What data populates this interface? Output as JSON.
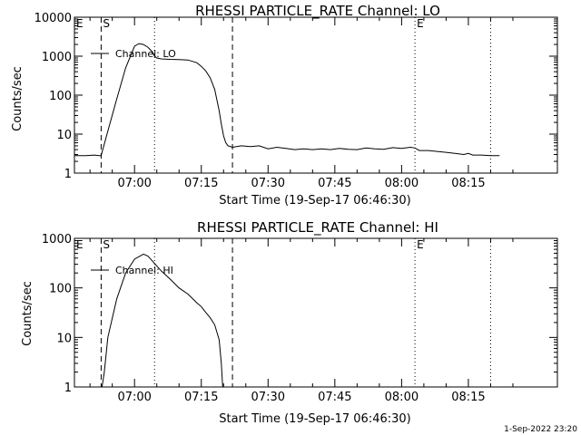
{
  "footer": {
    "timestamp": "1-Sep-2022 23:20"
  },
  "chart_data": [
    {
      "type": "line",
      "title": "RHESSI PARTICLE_RATE Channel: LO",
      "xlabel": "Start Time (19-Sep-17 06:46:30)",
      "ylabel": "Counts/sec",
      "yscale": "log",
      "ylim": [
        1,
        10000
      ],
      "xlim": [
        -13.5,
        95
      ],
      "x_units": "minutes after 07:00",
      "xticks": [
        0,
        15,
        30,
        45,
        60,
        75
      ],
      "xtick_labels": [
        "07:00",
        "07:15",
        "07:30",
        "07:45",
        "08:00",
        "08:15"
      ],
      "yticks": [
        1,
        10,
        100,
        1000,
        10000
      ],
      "ytick_labels": [
        "1",
        "10",
        "100",
        "1000",
        "10000"
      ],
      "legend": {
        "label": "Channel: LO",
        "position": "top-left"
      },
      "markers": [
        {
          "label": "E",
          "x": -13.5
        },
        {
          "label": "S",
          "x": -7.5
        },
        {
          "label": "E",
          "x": 63
        }
      ],
      "vlines": [
        {
          "x": -7.5,
          "style": "dashed"
        },
        {
          "x": 4.5,
          "style": "dotted"
        },
        {
          "x": 22,
          "style": "dashed"
        },
        {
          "x": 63,
          "style": "dotted"
        },
        {
          "x": 80,
          "style": "dotted"
        }
      ],
      "series": [
        {
          "name": "Channel: LO",
          "x": [
            -13.5,
            -11,
            -9,
            -8,
            -7.5,
            -6,
            -4,
            -2,
            0,
            1,
            2,
            3,
            4,
            4.5,
            5,
            6,
            8,
            10,
            12,
            14,
            15,
            16,
            17,
            18,
            19,
            19.5,
            20,
            20.5,
            21,
            22,
            24,
            26,
            28,
            30,
            32,
            34,
            36,
            38,
            40,
            42,
            44,
            46,
            48,
            50,
            52,
            54,
            56,
            58,
            60,
            62,
            63,
            64,
            66,
            68,
            70,
            72,
            74,
            75,
            76,
            78,
            80,
            82
          ],
          "values": [
            2.8,
            2.8,
            2.9,
            2.8,
            2.8,
            12,
            80,
            500,
            1800,
            2100,
            2000,
            1700,
            1300,
            1000,
            900,
            850,
            830,
            820,
            800,
            680,
            550,
            420,
            280,
            140,
            40,
            18,
            9,
            6,
            5,
            4.6,
            5,
            4.8,
            5,
            4.2,
            4.6,
            4.3,
            4,
            4.2,
            4,
            4.2,
            4,
            4.3,
            4.1,
            4,
            4.4,
            4.2,
            4.1,
            4.5,
            4.3,
            4.6,
            4.4,
            3.8,
            3.8,
            3.6,
            3.4,
            3.2,
            3,
            3.2,
            2.9,
            2.9,
            2.8,
            2.8
          ]
        }
      ]
    },
    {
      "type": "line",
      "title": "RHESSI PARTICLE_RATE Channel: HI",
      "xlabel": "Start Time (19-Sep-17 06:46:30)",
      "ylabel": "Counts/sec",
      "yscale": "log",
      "ylim": [
        1,
        1000
      ],
      "xlim": [
        -13.5,
        95
      ],
      "x_units": "minutes after 07:00",
      "xticks": [
        0,
        15,
        30,
        45,
        60,
        75
      ],
      "xtick_labels": [
        "07:00",
        "07:15",
        "07:30",
        "07:45",
        "08:00",
        "08:15"
      ],
      "yticks": [
        1,
        10,
        100,
        1000
      ],
      "ytick_labels": [
        "1",
        "10",
        "100",
        "1000"
      ],
      "legend": {
        "label": "Channel: HI",
        "position": "top-left"
      },
      "markers": [
        {
          "label": "E",
          "x": -13.5
        },
        {
          "label": "S",
          "x": -7.5
        },
        {
          "label": "E",
          "x": 63
        }
      ],
      "vlines": [
        {
          "x": -7.5,
          "style": "dashed"
        },
        {
          "x": 4.5,
          "style": "dotted"
        },
        {
          "x": 22,
          "style": "dashed"
        },
        {
          "x": 63,
          "style": "dotted"
        },
        {
          "x": 80,
          "style": "dotted"
        }
      ],
      "series": [
        {
          "name": "Channel: HI",
          "x": [
            -7.3,
            -6.8,
            -6,
            -4,
            -2,
            0,
            2,
            3,
            4,
            6,
            8,
            10,
            12,
            14,
            15,
            16,
            17,
            18,
            19,
            19.5,
            19.8
          ],
          "values": [
            1,
            2,
            10,
            60,
            200,
            380,
            480,
            440,
            350,
            220,
            150,
            100,
            75,
            50,
            42,
            32,
            25,
            18,
            9,
            3,
            1
          ]
        }
      ]
    }
  ]
}
